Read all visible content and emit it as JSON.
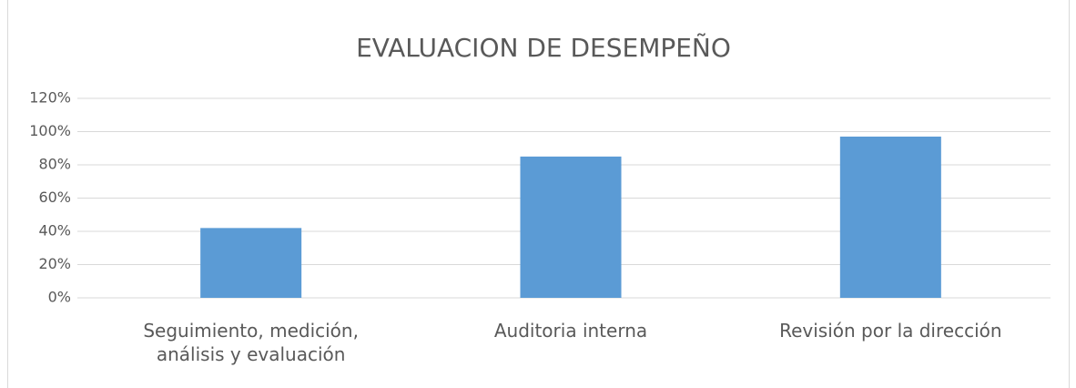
{
  "chart_data": {
    "type": "bar",
    "title": "EVALUACION DE DESEMPEÑO",
    "categories": [
      "Seguimiento, medición, análisis y evaluación",
      "Auditoria interna",
      "Revisión por la dirección"
    ],
    "values": [
      42,
      85,
      97
    ],
    "color": "#5b9bd5",
    "ylim": [
      0,
      120
    ],
    "yticks": [
      {
        "value": 0,
        "label": "0%"
      },
      {
        "value": 20,
        "label": "20%"
      },
      {
        "value": 40,
        "label": "40%"
      },
      {
        "value": 60,
        "label": "60%"
      },
      {
        "value": 80,
        "label": "80%"
      },
      {
        "value": 100,
        "label": "100%"
      },
      {
        "value": 120,
        "label": "120%"
      }
    ],
    "grid": true
  }
}
